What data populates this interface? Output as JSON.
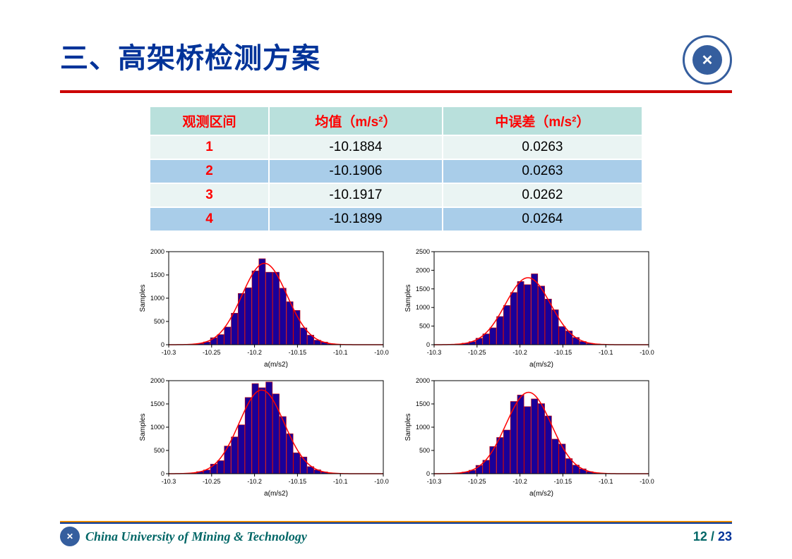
{
  "title": "三、高架桥检测方案",
  "footer_text": "China University of Mining  & Technology",
  "page_current": "12",
  "page_sep": " / ",
  "page_total": "23",
  "table": {
    "headers": [
      "观测区间",
      "均值（m/s²）",
      "中误差（m/s²）"
    ],
    "row_alt_colors": [
      "#eaf4f3",
      "#a9cde9"
    ],
    "rows": [
      [
        "1",
        "-10.1884",
        "0.0263"
      ],
      [
        "2",
        "-10.1906",
        "0.0263"
      ],
      [
        "3",
        "-10.1917",
        "0.0262"
      ],
      [
        "4",
        "-10.1899",
        "0.0264"
      ]
    ]
  },
  "chart_common": {
    "xlabel": "a(m/s2)",
    "ylabel": "Samples",
    "xlim": [
      -10.3,
      -10.05
    ],
    "xtick_step": 0.05,
    "bar_fill": "#1a0099",
    "bar_edge": "#cc0000",
    "curve_color": "#ff0000",
    "curve_width": 1.5,
    "bg": "#ffffff",
    "axis_color": "#000000",
    "tick_fontsize": 9,
    "label_fontsize": 10,
    "n_bins": 31
  },
  "charts": [
    {
      "ylim": [
        0,
        2000
      ],
      "ytick_step": 500,
      "mu": -10.1884,
      "sigma": 0.0263,
      "peak": 1750
    },
    {
      "ylim": [
        0,
        2500
      ],
      "ytick_step": 500,
      "mu": -10.1906,
      "sigma": 0.0263,
      "peak": 1800
    },
    {
      "ylim": [
        0,
        2000
      ],
      "ytick_step": 500,
      "mu": -10.1917,
      "sigma": 0.0262,
      "peak": 1800
    },
    {
      "ylim": [
        0,
        2000
      ],
      "ytick_step": 500,
      "mu": -10.1899,
      "sigma": 0.0264,
      "peak": 1750
    }
  ],
  "noise_seed": 12345
}
